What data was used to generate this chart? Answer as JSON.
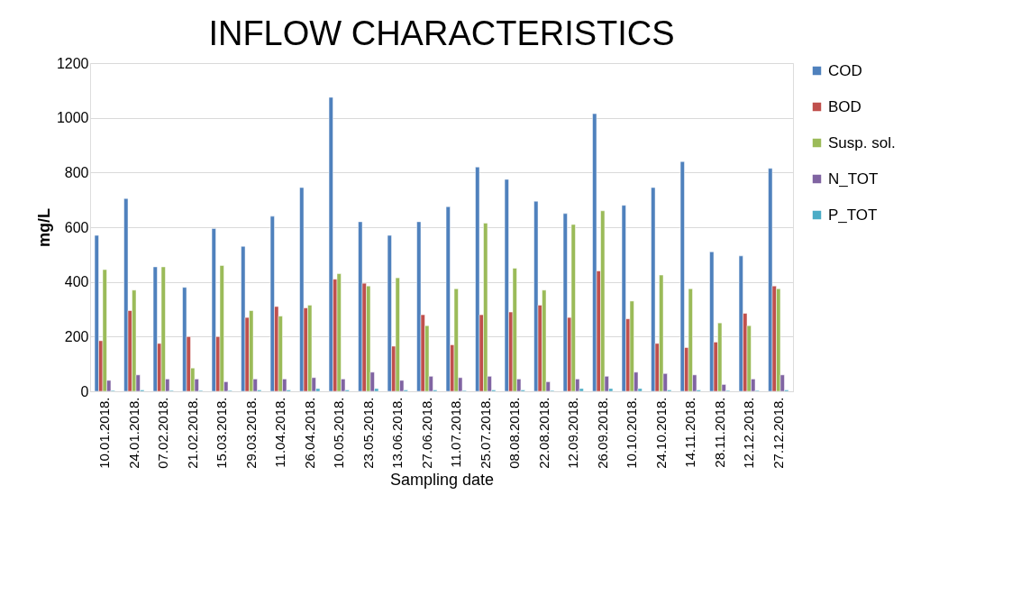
{
  "chart_data": {
    "type": "bar",
    "title": "INFLOW CHARACTERISTICS",
    "xlabel": "Sampling date",
    "ylabel": "mg/L",
    "categories": [
      "10.01.2018.",
      "24.01.2018.",
      "07.02.2018.",
      "21.02.2018.",
      "15.03.2018.",
      "29.03.2018.",
      "11.04.2018.",
      "26.04.2018.",
      "10.05.2018.",
      "23.05.2018.",
      "13.06.2018.",
      "27.06.2018.",
      "11.07.2018.",
      "25.07.2018.",
      "08.08.2018.",
      "22.08.2018.",
      "12.09.2018.",
      "26.09.2018.",
      "10.10.2018.",
      "24.10.2018.",
      "14.11.2018.",
      "28.11.2018.",
      "12.12.2018.",
      "27.12.2018."
    ],
    "series": [
      {
        "name": "COD",
        "color": "#4f81bd",
        "values": [
          570,
          705,
          455,
          380,
          595,
          530,
          640,
          745,
          1075,
          620,
          570,
          620,
          675,
          820,
          775,
          695,
          650,
          1015,
          680,
          745,
          840,
          510,
          495,
          815
        ]
      },
      {
        "name": "BOD",
        "color": "#c0504d",
        "values": [
          185,
          295,
          175,
          200,
          200,
          270,
          310,
          305,
          410,
          395,
          165,
          280,
          170,
          280,
          290,
          315,
          270,
          440,
          265,
          175,
          160,
          180,
          285,
          385
        ]
      },
      {
        "name": "Susp. sol.",
        "color": "#9bbb59",
        "values": [
          445,
          370,
          455,
          85,
          460,
          295,
          275,
          315,
          430,
          385,
          415,
          240,
          375,
          615,
          450,
          370,
          610,
          660,
          330,
          425,
          375,
          250,
          240,
          375
        ]
      },
      {
        "name": "N_TOT",
        "color": "#8064a2",
        "values": [
          40,
          60,
          45,
          45,
          35,
          45,
          45,
          50,
          45,
          70,
          40,
          55,
          50,
          55,
          45,
          35,
          45,
          55,
          70,
          65,
          60,
          25,
          45,
          60
        ]
      },
      {
        "name": "P_TOT",
        "color": "#4bacc6",
        "values": [
          3,
          5,
          3,
          3,
          3,
          5,
          5,
          10,
          5,
          10,
          5,
          5,
          3,
          5,
          5,
          3,
          10,
          10,
          10,
          5,
          5,
          3,
          3,
          5
        ]
      }
    ],
    "ylim": [
      0,
      1200
    ],
    "yticks": [
      0,
      200,
      400,
      600,
      800,
      1000,
      1200
    ],
    "grid": "y",
    "legend": "right"
  }
}
